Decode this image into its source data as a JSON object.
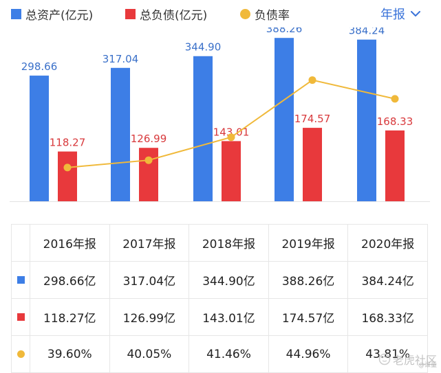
{
  "chart_data": {
    "type": "bar",
    "categories": [
      "2016年报",
      "2017年报",
      "2018年报",
      "2019年报",
      "2020年报"
    ],
    "series": [
      {
        "name": "总资产(亿元)",
        "type": "bar",
        "color": "#3d7ee6",
        "values": [
          298.66,
          317.04,
          344.9,
          388.26,
          384.24
        ],
        "labels": [
          "298.66",
          "317.04",
          "344.90",
          "388.26",
          "384.24"
        ]
      },
      {
        "name": "总负债(亿元)",
        "type": "bar",
        "color": "#e8393c",
        "values": [
          118.27,
          126.99,
          143.01,
          174.57,
          168.33
        ],
        "labels": [
          "118.27",
          "126.99",
          "143.01",
          "174.57",
          "168.33"
        ]
      },
      {
        "name": "负债率",
        "type": "line",
        "color": "#f0b93a",
        "values": [
          39.6,
          40.05,
          41.46,
          44.96,
          43.81
        ]
      }
    ],
    "ylim": [
      0,
      400
    ],
    "rate_range": [
      38.5,
      46.5
    ]
  },
  "legend": {
    "items": [
      {
        "label": "总资产(亿元)",
        "color": "#3d7ee6"
      },
      {
        "label": "总负债(亿元)",
        "color": "#e8393c"
      },
      {
        "label": "负债率",
        "color": "#f0b93a"
      }
    ]
  },
  "period_selector": {
    "label": "年报",
    "icon": "chevron-down-icon",
    "color": "#3a73d9"
  },
  "table": {
    "headers": [
      "2016年报",
      "2017年报",
      "2018年报",
      "2019年报",
      "2020年报"
    ],
    "rows": [
      {
        "marker": "square",
        "color": "#3d7ee6",
        "cells": [
          "298.66亿",
          "317.04亿",
          "344.90亿",
          "388.26亿",
          "384.24亿"
        ]
      },
      {
        "marker": "square",
        "color": "#e8393c",
        "cells": [
          "118.27亿",
          "126.99亿",
          "143.01亿",
          "174.57亿",
          "168.33亿"
        ]
      },
      {
        "marker": "dot",
        "color": "#f0b93a",
        "cells": [
          "39.60%",
          "40.05%",
          "41.46%",
          "44.96%",
          "43.81%"
        ]
      }
    ]
  },
  "watermark": {
    "text": "老虎社区",
    "sub": "@谁量",
    "icon": "tiger-logo-icon"
  }
}
